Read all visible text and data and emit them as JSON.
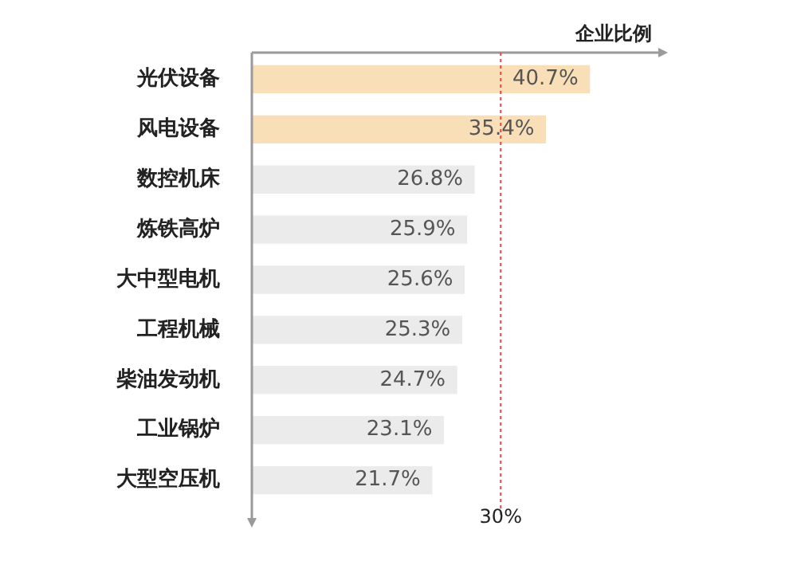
{
  "chart_data": {
    "type": "bar",
    "orientation": "horizontal",
    "xlabel": "企业比例",
    "categories": [
      "光伏设备",
      "风电设备",
      "数控机床",
      "炼铁高炉",
      "大中型电机",
      "工程机械",
      "柴油发动机",
      "工业锅炉",
      "大型空压机"
    ],
    "values": [
      40.7,
      35.4,
      26.8,
      25.9,
      25.6,
      25.3,
      24.7,
      23.1,
      21.7
    ],
    "colors": [
      "#f9dfb8",
      "#f9dfb8",
      "#ebebeb",
      "#ebebeb",
      "#ebebeb",
      "#ebebeb",
      "#ebebeb",
      "#ebebeb",
      "#ebebeb"
    ],
    "value_labels": [
      "40.7%",
      "35.4%",
      "26.8%",
      "25.9%",
      "25.6%",
      "25.3%",
      "24.7%",
      "23.1%",
      "21.7%"
    ],
    "xlim": [
      0,
      49
    ],
    "ref_lines": [
      {
        "axis": "x",
        "value": 30,
        "label": "30%",
        "color": "#e8474c",
        "line_style": "dotted"
      }
    ],
    "legend": false
  }
}
